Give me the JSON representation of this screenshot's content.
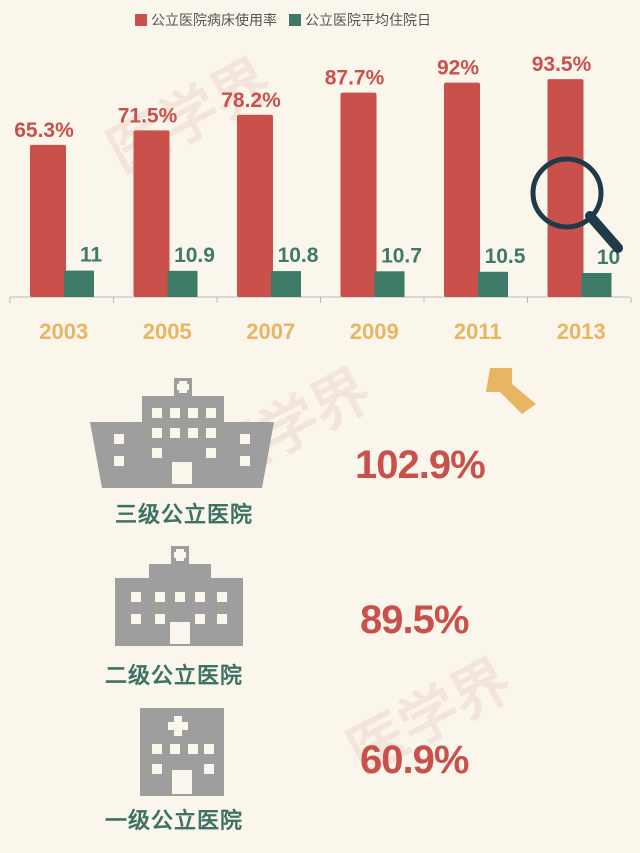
{
  "chart_data": {
    "type": "bar",
    "categories": [
      "2003",
      "2005",
      "2007",
      "2009",
      "2011",
      "2013"
    ],
    "series": [
      {
        "name": "公立医院病床使用率",
        "values": [
          65.3,
          71.5,
          78.2,
          87.7,
          92,
          93.5
        ],
        "labels": [
          "65.3%",
          "71.5%",
          "78.2%",
          "87.7%",
          "92%",
          "93.5%"
        ],
        "color": "#C9504B"
      },
      {
        "name": "公立医院平均住院日",
        "values": [
          11,
          10.9,
          10.8,
          10.7,
          10.5,
          10
        ],
        "labels": [
          "11",
          "10.9",
          "10.8",
          "10.7",
          "10.5",
          "10"
        ],
        "color": "#3E7A68"
      }
    ],
    "legend_position": "top",
    "grid": false
  },
  "hospitals": [
    {
      "label": "三级公立医院",
      "rate": "102.9%"
    },
    {
      "label": "二级公立医院",
      "rate": "89.5%"
    },
    {
      "label": "一级公立医院",
      "rate": "60.9%"
    }
  ],
  "watermark": "医学界",
  "colors": {
    "red": "#C9504B",
    "green": "#3E7A68",
    "year": "#E8B563",
    "building": "#9E9E9E",
    "arrow": "#E8B563",
    "magnifier": "#1F3A48"
  },
  "icons": [
    "magnifier-icon",
    "arrow-down-left-icon",
    "hospital-building-icon"
  ]
}
